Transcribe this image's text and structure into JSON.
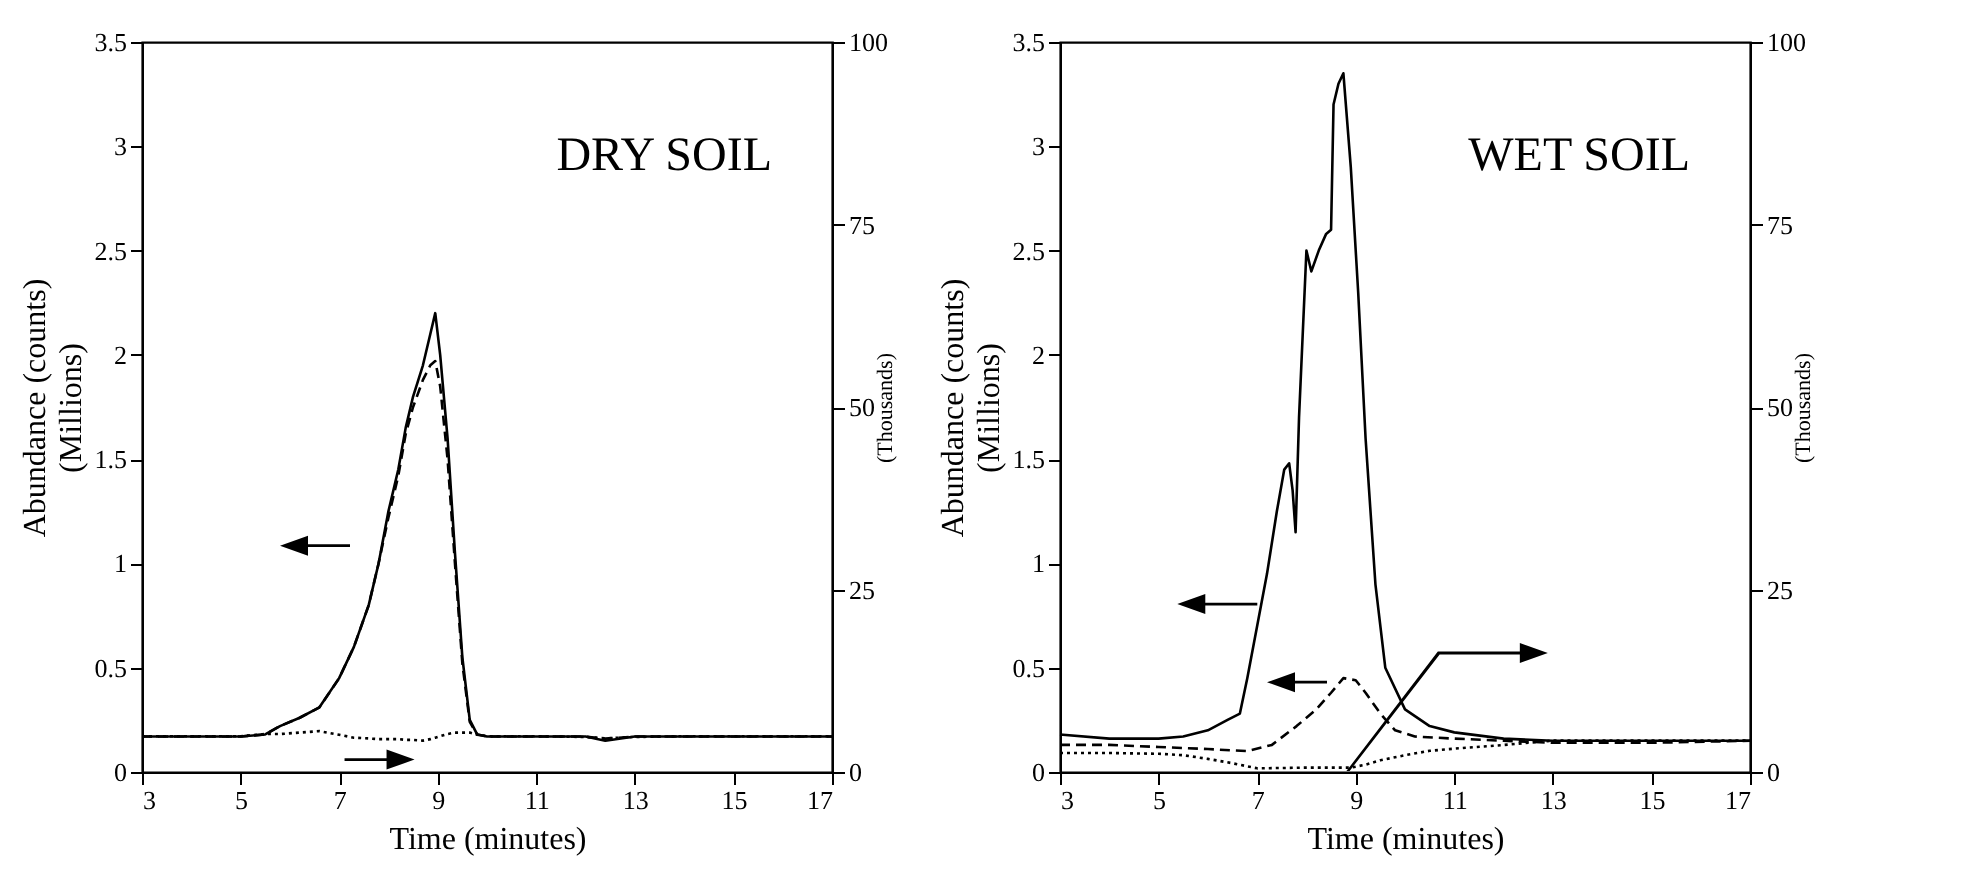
{
  "chart_data": [
    {
      "type": "line",
      "annotations": [
        "DRY SOIL"
      ],
      "xlabel": "Time (minutes)",
      "ylabel": "Abundance (counts)\n(Millions)",
      "y2label": "(Thousands)",
      "xlim": [
        3,
        17
      ],
      "xticks": [
        3,
        5,
        7,
        9,
        11,
        13,
        15,
        17
      ],
      "ylim": [
        0,
        3.5
      ],
      "yticks": [
        0,
        0.5,
        1,
        1.5,
        2,
        2.5,
        3,
        3.5
      ],
      "y2lim": [
        0,
        100
      ],
      "y2ticks": [
        0,
        25,
        50,
        75,
        100
      ],
      "x": [
        3,
        4,
        5,
        5.5,
        5.8,
        6.2,
        6.6,
        7,
        7.3,
        7.6,
        7.8,
        8,
        8.2,
        8.35,
        8.5,
        8.7,
        8.85,
        8.95,
        9.05,
        9.2,
        9.35,
        9.5,
        9.65,
        9.8,
        10,
        11,
        12,
        12.4,
        13,
        14,
        15,
        16,
        17
      ],
      "series": [
        {
          "color": "#000000",
          "line_style": "solid",
          "values": [
            0.17,
            0.17,
            0.17,
            0.18,
            0.22,
            0.26,
            0.31,
            0.45,
            0.6,
            0.8,
            1.0,
            1.25,
            1.45,
            1.65,
            1.8,
            1.95,
            2.1,
            2.2,
            2.0,
            1.6,
            1.05,
            0.55,
            0.25,
            0.18,
            0.17,
            0.17,
            0.17,
            0.15,
            0.17,
            0.17,
            0.17,
            0.17,
            0.17
          ]
        },
        {
          "color": "#000000",
          "line_style": "dashed",
          "values": [
            0.17,
            0.17,
            0.17,
            0.18,
            0.22,
            0.26,
            0.31,
            0.45,
            0.6,
            0.8,
            1.0,
            1.22,
            1.42,
            1.62,
            1.75,
            1.88,
            1.95,
            1.97,
            1.85,
            1.5,
            1.0,
            0.52,
            0.24,
            0.18,
            0.17,
            0.17,
            0.17,
            0.16,
            0.17,
            0.17,
            0.17,
            0.17,
            0.17
          ]
        },
        {
          "color": "#000000",
          "line_style": "dotted",
          "axis": "y2",
          "values": [
            4.9,
            4.9,
            4.9,
            5.2,
            5.2,
            5.4,
            5.6,
            5.1,
            4.7,
            4.6,
            4.5,
            4.5,
            4.5,
            4.4,
            4.4,
            4.3,
            4.5,
            4.7,
            4.9,
            5.2,
            5.4,
            5.4,
            5.4,
            5.1,
            4.9,
            4.9,
            4.8,
            4.6,
            4.8,
            4.9,
            4.9,
            4.9,
            4.9
          ]
        }
      ]
    },
    {
      "type": "line",
      "annotations": [
        "WET SOIL"
      ],
      "xlabel": "Time (minutes)",
      "ylabel": "Abundance (counts)\n(Millions)",
      "y2label": "(Thousands)",
      "xlim": [
        3,
        17
      ],
      "xticks": [
        3,
        5,
        7,
        9,
        11,
        13,
        15,
        17
      ],
      "ylim": [
        0,
        3.5
      ],
      "yticks": [
        0,
        0.5,
        1,
        1.5,
        2,
        2.5,
        3,
        3.5
      ],
      "y2lim": [
        0,
        100
      ],
      "y2ticks": [
        0,
        25,
        50,
        75,
        100
      ],
      "series": [
        {
          "color": "#000000",
          "line_style": "solid",
          "x": [
            3,
            4,
            5,
            5.5,
            6,
            6.4,
            6.65,
            6.8,
            7,
            7.2,
            7.4,
            7.55,
            7.65,
            7.72,
            7.78,
            7.85,
            8,
            8.1,
            8.25,
            8.4,
            8.5,
            8.55,
            8.65,
            8.75,
            8.9,
            9.05,
            9.2,
            9.4,
            9.6,
            10,
            10.5,
            11,
            12,
            13,
            15,
            17
          ],
          "values": [
            0.18,
            0.16,
            0.16,
            0.17,
            0.2,
            0.25,
            0.28,
            0.45,
            0.7,
            0.95,
            1.25,
            1.45,
            1.48,
            1.35,
            1.15,
            1.7,
            2.5,
            2.4,
            2.5,
            2.58,
            2.6,
            3.2,
            3.3,
            3.35,
            2.9,
            2.3,
            1.6,
            0.9,
            0.5,
            0.3,
            0.22,
            0.19,
            0.16,
            0.15,
            0.15,
            0.15
          ]
        },
        {
          "color": "#000000",
          "line_style": "dashed",
          "x": [
            3,
            4,
            5,
            6,
            6.8,
            7.3,
            7.8,
            8.2,
            8.5,
            8.75,
            9.0,
            9.2,
            9.5,
            9.8,
            10.2,
            11,
            12,
            13,
            15,
            17
          ],
          "values": [
            0.13,
            0.13,
            0.12,
            0.11,
            0.1,
            0.13,
            0.22,
            0.3,
            0.38,
            0.45,
            0.44,
            0.38,
            0.28,
            0.2,
            0.17,
            0.16,
            0.15,
            0.14,
            0.14,
            0.15
          ]
        },
        {
          "color": "#000000",
          "line_style": "dotted",
          "axis": "y2",
          "x": [
            3,
            4,
            5,
            5.5,
            6,
            6.5,
            7,
            8,
            8.9,
            9.2,
            9.5,
            10,
            10.5,
            11,
            12,
            13,
            15,
            17
          ],
          "values": [
            2.6,
            2.6,
            2.5,
            2.3,
            1.8,
            1.2,
            0.5,
            0.6,
            0.6,
            1.0,
            1.6,
            2.3,
            2.9,
            3.2,
            3.7,
            4.3,
            4.3,
            4.3
          ]
        }
      ]
    }
  ]
}
